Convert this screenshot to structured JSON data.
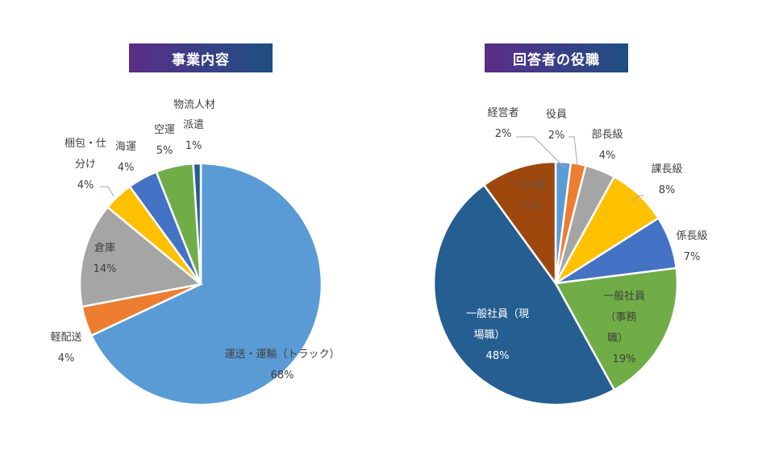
{
  "chart_data": [
    {
      "type": "pie",
      "title": "事業内容",
      "categories": [
        "運送・運輸（トラック）",
        "軽配送",
        "倉庫",
        "梱包・仕分け",
        "海運",
        "空運",
        "物流人材派遣"
      ],
      "values": [
        68,
        4,
        14,
        4,
        4,
        5,
        1
      ],
      "colors": [
        "#5b9bd5",
        "#ed7d31",
        "#a5a5a5",
        "#ffc000",
        "#4472c4",
        "#70ad47",
        "#255e91"
      ],
      "start_angle": "12 o'clock, clockwise",
      "legend": "none (data labels)"
    },
    {
      "type": "pie",
      "title": "回答者の役職",
      "categories": [
        "経営者",
        "役員",
        "部長級",
        "課長級",
        "係長級",
        "一般社員（事務職）",
        "一般社員（現場職）",
        "その他"
      ],
      "values": [
        2,
        2,
        4,
        8,
        7,
        19,
        48,
        10
      ],
      "colors": [
        "#5b9bd5",
        "#ed7d31",
        "#a5a5a5",
        "#ffc000",
        "#4472c4",
        "#70ad47",
        "#255e91",
        "#9e480e"
      ],
      "start_angle": "12 o'clock, clockwise",
      "legend": "none (data labels)"
    }
  ],
  "left": {
    "title": "事業内容",
    "labels": {
      "truck_name": "運送・運輸（トラック）",
      "truck_pct": "68%",
      "light_name": "軽配送",
      "light_pct": "4%",
      "warehouse_name": "倉庫",
      "warehouse_pct": "14%",
      "pack_name1": "梱包・仕",
      "pack_name2": "分け",
      "pack_pct": "4%",
      "sea_name": "海運",
      "sea_pct": "4%",
      "air_name": "空運",
      "air_pct": "5%",
      "staff_name1": "物流人材",
      "staff_name2": "派遣",
      "staff_pct": "1%"
    }
  },
  "right": {
    "title": "回答者の役職",
    "labels": {
      "exec_name": "経営者",
      "exec_pct": "2%",
      "officer_name": "役員",
      "officer_pct": "2%",
      "gm_name": "部長級",
      "gm_pct": "4%",
      "mgr_name": "課長級",
      "mgr_pct": "8%",
      "chief_name": "係長級",
      "chief_pct": "7%",
      "office_name1": "一般社員",
      "office_name2": "（事務",
      "office_name3": "職）",
      "office_pct": "19%",
      "field_name1": "一般社員（現",
      "field_name2": "場職）",
      "field_pct": "48%",
      "other_name": "その他",
      "other_pct": "10%"
    }
  }
}
